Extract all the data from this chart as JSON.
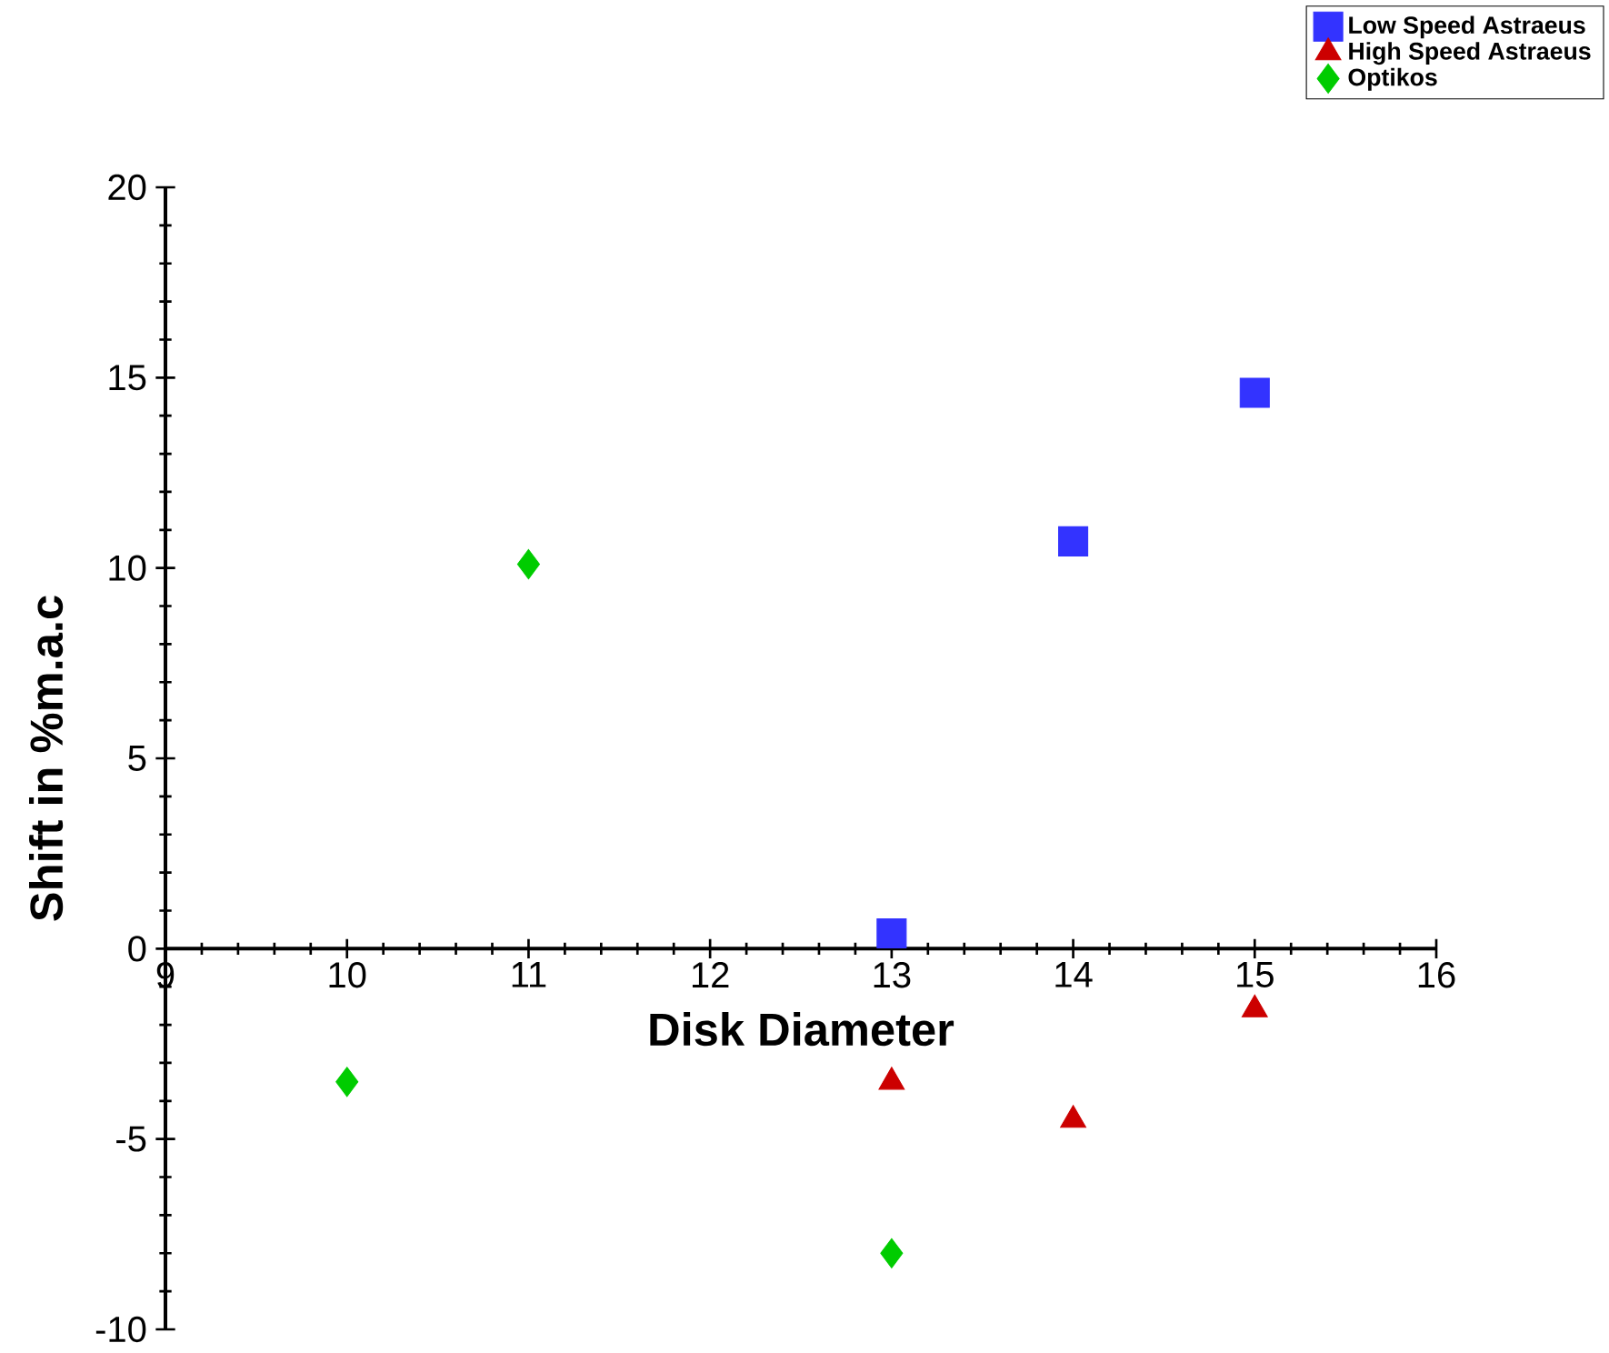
{
  "chart_data": {
    "type": "scatter",
    "xlabel": "Disk Diameter",
    "ylabel": "Shift in %m.a.c",
    "xlim": [
      9,
      16
    ],
    "ylim": [
      -10,
      20
    ],
    "xticks": [
      9,
      10,
      11,
      12,
      13,
      14,
      15,
      16
    ],
    "yticks": [
      -10,
      -5,
      0,
      5,
      10,
      15,
      20
    ],
    "legend": "top right",
    "series": [
      {
        "name": "Low Speed Astraeus",
        "color": "#3333ff",
        "marker": "square",
        "x": [
          13,
          14,
          15
        ],
        "values": [
          0.4,
          10.7,
          14.6
        ]
      },
      {
        "name": "High Speed Astraeus",
        "color": "#cc0000",
        "marker": "triangle",
        "x": [
          13,
          14,
          15
        ],
        "values": [
          -3.5,
          -4.5,
          -1.6
        ]
      },
      {
        "name": "Optikos",
        "color": "#00cc00",
        "marker": "diamond",
        "x": [
          10,
          11,
          13
        ],
        "values": [
          -3.5,
          10.1,
          -8.0
        ]
      }
    ]
  }
}
